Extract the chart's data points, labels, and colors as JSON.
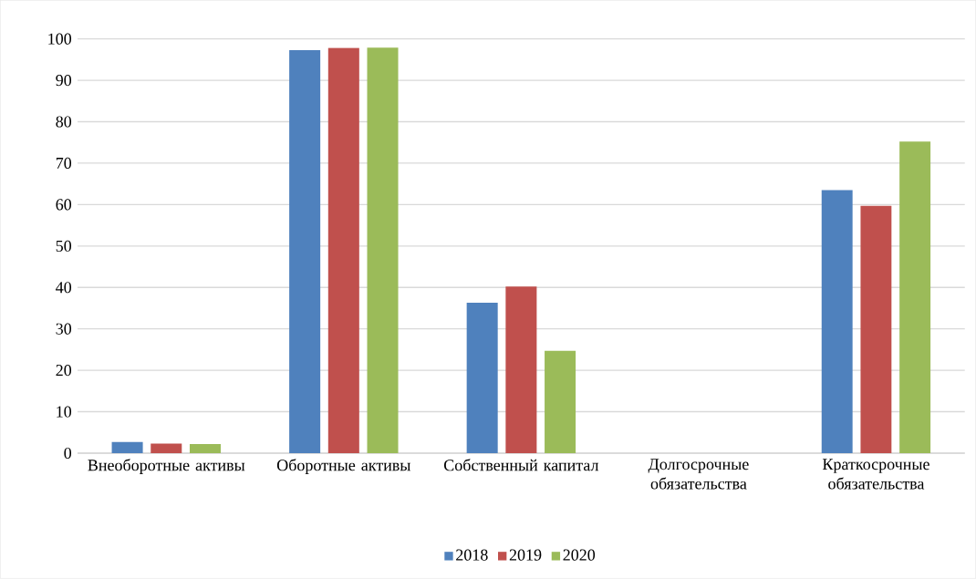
{
  "chart_data": {
    "type": "bar",
    "categories": [
      "Внеоборотные активы",
      "Оборотные активы",
      "Собственный капитал",
      "Долгосрочные обязательства",
      "Краткосрочные обязательства"
    ],
    "series": [
      {
        "name": "2018",
        "color": "#4f81bd",
        "values": [
          2.7,
          97.3,
          36.3,
          0,
          63.5
        ]
      },
      {
        "name": "2019",
        "color": "#c0504d",
        "values": [
          2.3,
          97.8,
          40.2,
          0,
          59.7
        ]
      },
      {
        "name": "2020",
        "color": "#9bbb59",
        "values": [
          2.2,
          97.9,
          24.7,
          0,
          75.2
        ]
      }
    ],
    "ylim": [
      0,
      100
    ],
    "yticks": [
      0,
      10,
      20,
      30,
      40,
      50,
      60,
      70,
      80,
      90,
      100
    ],
    "grid": "y",
    "legend": "bottom"
  }
}
